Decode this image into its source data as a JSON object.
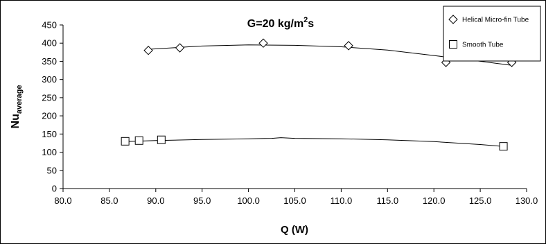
{
  "chart_data": {
    "type": "scatter",
    "title_main": "G=20 kg/m",
    "title_sup": "2",
    "title_tail": "s",
    "xlabel": "Q (W)",
    "ylabel_main": "Nu",
    "ylabel_sub": "average",
    "xlim": [
      80.0,
      130.0
    ],
    "ylim": [
      0,
      450
    ],
    "x_ticks": [
      "80.0",
      "85.0",
      "90.0",
      "95.0",
      "100.0",
      "105.0",
      "110.0",
      "115.0",
      "120.0",
      "125.0",
      "130.0"
    ],
    "y_ticks": [
      "0",
      "50",
      "100",
      "150",
      "200",
      "250",
      "300",
      "350",
      "400",
      "450"
    ],
    "grid": false,
    "legend_position": "top-right",
    "series": [
      {
        "name": "Helical Micro-fin Tube",
        "marker": "diamond",
        "points": [
          {
            "x": 89.2,
            "y": 380
          },
          {
            "x": 92.6,
            "y": 387
          },
          {
            "x": 101.6,
            "y": 400
          },
          {
            "x": 110.8,
            "y": 393
          },
          {
            "x": 121.3,
            "y": 347
          },
          {
            "x": 128.4,
            "y": 347
          }
        ],
        "trend": [
          {
            "x": 89.2,
            "y": 383
          },
          {
            "x": 95.0,
            "y": 392
          },
          {
            "x": 100.0,
            "y": 395
          },
          {
            "x": 105.0,
            "y": 394
          },
          {
            "x": 110.0,
            "y": 390
          },
          {
            "x": 115.0,
            "y": 381
          },
          {
            "x": 120.0,
            "y": 366
          },
          {
            "x": 125.0,
            "y": 350
          },
          {
            "x": 128.4,
            "y": 339
          }
        ]
      },
      {
        "name": "Smooth Tube",
        "marker": "square",
        "points": [
          {
            "x": 86.7,
            "y": 130
          },
          {
            "x": 88.2,
            "y": 132
          },
          {
            "x": 90.6,
            "y": 134
          },
          {
            "x": 127.5,
            "y": 116
          }
        ],
        "trend": [
          {
            "x": 86.7,
            "y": 129
          },
          {
            "x": 90.0,
            "y": 132
          },
          {
            "x": 95.0,
            "y": 135
          },
          {
            "x": 100.0,
            "y": 137
          },
          {
            "x": 102.5,
            "y": 138
          },
          {
            "x": 103.5,
            "y": 140
          },
          {
            "x": 105.0,
            "y": 138
          },
          {
            "x": 110.0,
            "y": 137
          },
          {
            "x": 115.0,
            "y": 134
          },
          {
            "x": 120.0,
            "y": 129
          },
          {
            "x": 125.0,
            "y": 121
          },
          {
            "x": 127.5,
            "y": 116
          }
        ]
      }
    ]
  }
}
